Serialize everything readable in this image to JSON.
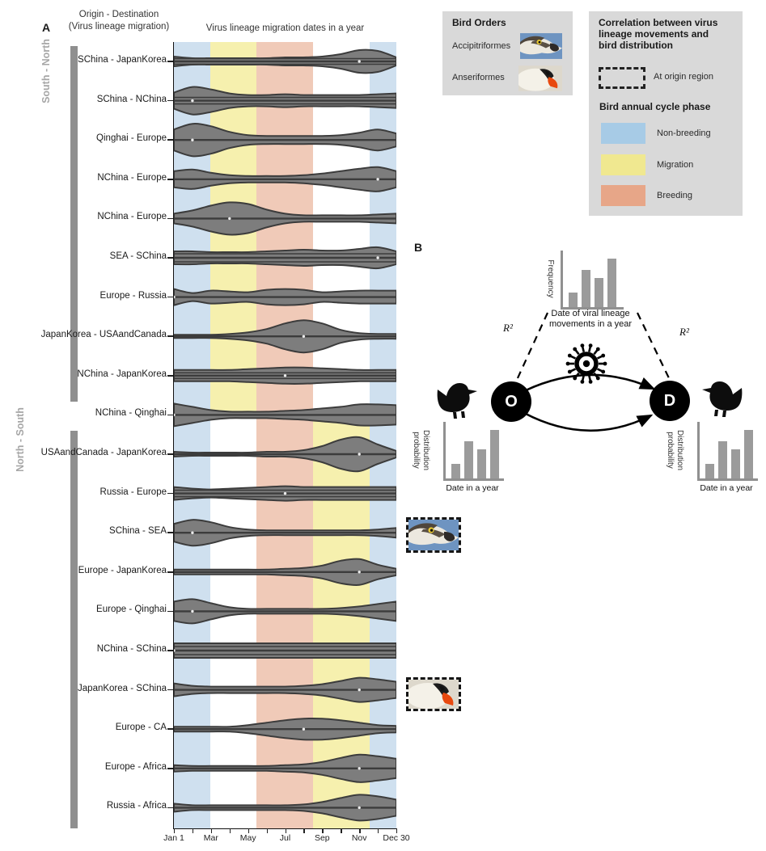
{
  "panel_a": {
    "label": "A",
    "y_axis_title_line1": "Origin - Destination",
    "y_axis_title_line2": "(Virus lineage migration)",
    "plot_title": "Virus lineage migration dates in a year",
    "group_top_label": "South - North",
    "group_bottom_label": "North - South"
  },
  "chart_data": {
    "type": "violin",
    "title": "Virus lineage migration dates in a year",
    "x_axis": {
      "tick_labels": [
        "Jan 1",
        "Mar",
        "May",
        "Jul",
        "Sep",
        "Nov",
        "Dec 30"
      ],
      "tick_months": [
        0,
        2,
        4,
        6,
        8,
        10,
        12
      ],
      "minor_ticks_monthly": 13,
      "range": "Jan 1 - Dec 30"
    },
    "group_brackets": [
      {
        "label": "South - North",
        "row_indexes": [
          0,
          8
        ]
      },
      {
        "label": "North - South",
        "row_indexes": [
          10,
          19
        ]
      }
    ],
    "phase_bands": {
      "note": "fractions of year; top section applies above NChina-Qinghai row, bottom section below",
      "top_section": [
        {
          "phase": "non_breeding",
          "from": 0.0,
          "to": 0.165
        },
        {
          "phase": "migration",
          "from": 0.165,
          "to": 0.372
        },
        {
          "phase": "breeding",
          "from": 0.372,
          "to": 0.627
        },
        {
          "phase": "non_breeding",
          "from": 0.879,
          "to": 1.0
        }
      ],
      "bottom_section": [
        {
          "phase": "non_breeding",
          "from": 0.0,
          "to": 0.165
        },
        {
          "phase": "breeding",
          "from": 0.372,
          "to": 0.627
        },
        {
          "phase": "migration",
          "from": 0.627,
          "to": 0.879
        },
        {
          "phase": "non_breeding",
          "from": 0.879,
          "to": 1.0
        }
      ]
    },
    "profile_unit": "estimated violin half-width in px, sampled at 13 even dates across the year",
    "rows": [
      {
        "origin_destination": "SChina - JapanKorea",
        "density_profile": [
          6,
          4,
          4,
          4,
          4,
          4,
          5,
          5,
          6,
          9,
          14,
          13,
          5
        ],
        "inner_profile": 3.5
      },
      {
        "origin_destination": "SChina - NChina",
        "density_profile": [
          10,
          17,
          14,
          9,
          7,
          7,
          8,
          7,
          7,
          7,
          7,
          8,
          9
        ],
        "inner_profile": 4
      },
      {
        "origin_destination": "Qinghai - Europe",
        "density_profile": [
          13,
          20,
          17,
          10,
          6,
          5,
          5,
          5,
          5,
          6,
          9,
          13,
          8
        ],
        "inner_profile": null
      },
      {
        "origin_destination": "NChina - Europe",
        "density_profile": [
          10,
          12,
          8,
          5,
          4,
          4,
          4,
          5,
          7,
          10,
          13,
          15,
          10
        ],
        "inner_profile": null
      },
      {
        "origin_destination": "NChina - Europe",
        "density_profile": [
          6,
          10,
          16,
          20,
          18,
          11,
          6,
          4,
          4,
          4,
          4,
          5,
          6
        ],
        "inner_profile": null
      },
      {
        "origin_destination": "SEA - SChina",
        "density_profile": [
          8,
          8,
          7,
          7,
          7,
          8,
          9,
          10,
          9,
          9,
          11,
          13,
          8
        ],
        "inner_profile": 5
      },
      {
        "origin_destination": "Europe - Russia",
        "density_profile": [
          10,
          5,
          8,
          7,
          6,
          9,
          10,
          9,
          6,
          7,
          8,
          8,
          8
        ],
        "inner_profile": null
      },
      {
        "origin_destination": "JapanKorea - USAandCanada",
        "density_profile": [
          2,
          2,
          2,
          3,
          5,
          9,
          16,
          20,
          16,
          8,
          4,
          3,
          3
        ],
        "inner_profile": null
      },
      {
        "origin_destination": "NChina - JapanKorea",
        "density_profile": [
          7,
          7,
          7,
          7,
          8,
          9,
          10,
          10,
          9,
          8,
          7,
          7,
          7
        ],
        "inner_profile": 3.5
      },
      {
        "origin_destination": "NChina - Qinghai",
        "density_profile": [
          14,
          10,
          6,
          4,
          4,
          4,
          5,
          6,
          8,
          10,
          13,
          13,
          12
        ],
        "inner_profile": null
      },
      {
        "origin_destination": "USAandCanada - JapanKorea",
        "density_profile": [
          3,
          2,
          2,
          2,
          2,
          3,
          3,
          5,
          10,
          18,
          21,
          12,
          4
        ],
        "inner_profile": null
      },
      {
        "origin_destination": "Russia - Europe",
        "density_profile": [
          8,
          6,
          5,
          6,
          7,
          8,
          9,
          8,
          8,
          8,
          8,
          8,
          8
        ],
        "inner_profile": 4
      },
      {
        "origin_destination": "SChina - SEA",
        "density_profile": [
          11,
          16,
          13,
          7,
          4,
          3,
          3,
          3,
          3,
          3,
          3,
          4,
          6
        ],
        "inner_profile": null
      },
      {
        "origin_destination": "Europe - JapanKorea",
        "density_profile": [
          3,
          3,
          3,
          3,
          3,
          3,
          4,
          5,
          8,
          14,
          16,
          9,
          4
        ],
        "inner_profile": null
      },
      {
        "origin_destination": "Europe - Qinghai",
        "density_profile": [
          12,
          15,
          10,
          5,
          3,
          3,
          3,
          3,
          3,
          4,
          6,
          9,
          12
        ],
        "inner_profile": null
      },
      {
        "origin_destination": "NChina - SChina",
        "density_profile": [
          9,
          9,
          9,
          9,
          9,
          9,
          9,
          9,
          9,
          9,
          9,
          9,
          9
        ],
        "inner_profile": 5
      },
      {
        "origin_destination": "JapanKorea - SChina",
        "density_profile": [
          8,
          5,
          4,
          4,
          4,
          4,
          4,
          5,
          7,
          11,
          15,
          13,
          10
        ],
        "inner_profile": null
      },
      {
        "origin_destination": "Europe - CA",
        "density_profile": [
          3,
          3,
          3,
          3,
          5,
          8,
          11,
          13,
          13,
          11,
          8,
          5,
          4
        ],
        "inner_profile": null
      },
      {
        "origin_destination": "Europe - Africa",
        "density_profile": [
          4,
          3,
          3,
          3,
          3,
          3,
          4,
          5,
          8,
          13,
          17,
          15,
          12
        ],
        "inner_profile": null
      },
      {
        "origin_destination": "Russia - Africa",
        "density_profile": [
          5,
          3,
          3,
          3,
          3,
          3,
          3,
          4,
          7,
          12,
          16,
          14,
          10
        ],
        "inner_profile": null
      }
    ],
    "panel_b_schematic_bars": [
      0.26,
      0.66,
      0.51,
      0.85
    ]
  },
  "legend_bird_orders": {
    "title": "Bird Orders",
    "items": [
      {
        "label": "Accipitriformes",
        "photo": "osprey-head-photo"
      },
      {
        "label": "Anseriformes",
        "photo": "swan-photo"
      }
    ]
  },
  "legend_correlation": {
    "title_line1": "Correlation between virus",
    "title_line2": "lineage movements and",
    "title_line3": "bird distribution",
    "dashed_box_label": "At origin region",
    "subtitle": "Bird annual cycle phase",
    "phases": [
      {
        "label": "Non-breeding",
        "color": "#a7cbe6"
      },
      {
        "label": "Migration",
        "color": "#f0e890"
      },
      {
        "label": "Breeding",
        "color": "#e7a688"
      }
    ]
  },
  "panel_b": {
    "label": "B",
    "frequency_chart": {
      "ylabel": "Frequency",
      "bar_values": [
        0.26,
        0.66,
        0.51,
        0.85
      ]
    },
    "center_text_line1": "Date of viral lineage",
    "center_text_line2": "movements in a year",
    "r2_left": "R²",
    "r2_right": "R²",
    "origin_node": "O",
    "destination_node": "D",
    "dist_chart_left": {
      "ylabel_line1": "Distribution",
      "ylabel_line2": "probability",
      "xlabel": "Date in a year",
      "bar_values": [
        0.26,
        0.66,
        0.51,
        0.85
      ]
    },
    "dist_chart_right": {
      "ylabel_line1": "Distribution",
      "ylabel_line2": "probability",
      "xlabel": "Date in a year",
      "bar_values": [
        0.26,
        0.66,
        0.51,
        0.85
      ]
    }
  },
  "colors": {
    "violin_fill": "#7d7d7d",
    "violin_stroke": "#3c3c3c",
    "phase_plot": {
      "non_breeding": "#cfe0ef",
      "migration": "#f6f0ae",
      "breeding": "#f0cab8"
    },
    "legend_box_bg": "#d9d9d9",
    "group_bar": "#8f8f8f",
    "mini_bar": "#9b9b9b"
  }
}
